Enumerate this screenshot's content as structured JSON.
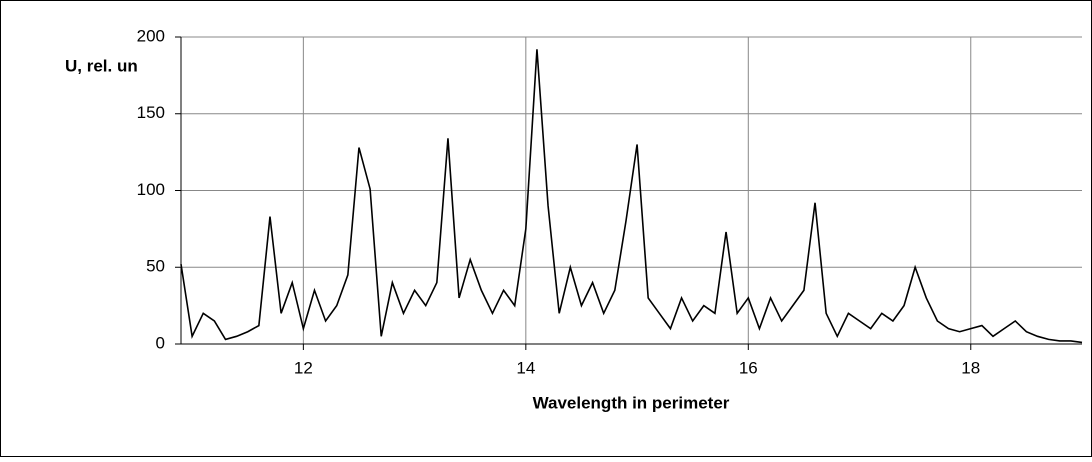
{
  "chart_data": {
    "type": "line",
    "ylabel": "U, rel. un",
    "xlabel": "Wavelength in perimeter",
    "x": [
      10.9,
      11.0,
      11.1,
      11.2,
      11.3,
      11.4,
      11.5,
      11.6,
      11.7,
      11.8,
      11.9,
      12.0,
      12.1,
      12.2,
      12.3,
      12.4,
      12.5,
      12.6,
      12.7,
      12.8,
      12.9,
      13.0,
      13.1,
      13.2,
      13.3,
      13.4,
      13.5,
      13.6,
      13.7,
      13.8,
      13.9,
      14.0,
      14.1,
      14.2,
      14.3,
      14.4,
      14.5,
      14.6,
      14.7,
      14.8,
      14.9,
      15.0,
      15.1,
      15.2,
      15.3,
      15.4,
      15.5,
      15.6,
      15.7,
      15.8,
      15.9,
      16.0,
      16.1,
      16.2,
      16.3,
      16.4,
      16.5,
      16.6,
      16.7,
      16.8,
      16.9,
      17.0,
      17.1,
      17.2,
      17.3,
      17.4,
      17.5,
      17.6,
      17.7,
      17.8,
      17.9,
      18.0,
      18.1,
      18.2,
      18.3,
      18.4,
      18.5,
      18.6,
      18.7,
      18.8,
      18.9,
      19.0
    ],
    "series": [
      {
        "name": "U",
        "color": "#000000",
        "values": [
          52,
          5,
          20,
          15,
          3,
          5,
          8,
          12,
          83,
          20,
          40,
          10,
          35,
          15,
          25,
          45,
          128,
          101,
          5,
          40,
          20,
          35,
          25,
          40,
          134,
          30,
          55,
          35,
          20,
          35,
          25,
          75,
          192,
          90,
          20,
          50,
          25,
          40,
          20,
          35,
          80,
          130,
          30,
          20,
          10,
          30,
          15,
          25,
          20,
          73,
          20,
          30,
          10,
          30,
          15,
          25,
          35,
          92,
          20,
          5,
          20,
          15,
          10,
          20,
          15,
          25,
          50,
          30,
          15,
          10,
          8,
          10,
          12,
          5,
          10,
          15,
          8,
          5,
          3,
          2,
          2,
          1
        ]
      }
    ],
    "xlim": [
      10.9,
      19.0
    ],
    "xticks": [
      12,
      14,
      16,
      18
    ],
    "ylim": [
      0,
      200
    ],
    "yticks": [
      0,
      50,
      100,
      150,
      200
    ],
    "grid": true
  }
}
